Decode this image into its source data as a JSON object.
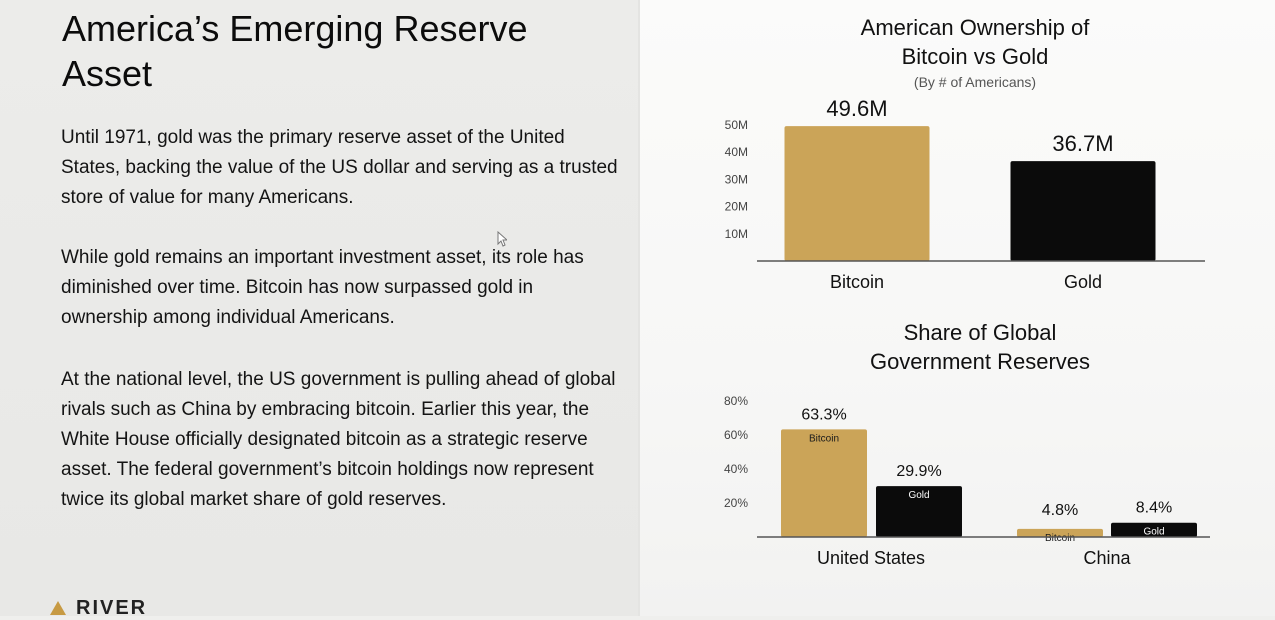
{
  "slide": {
    "headline": "America’s Emerging Reserve Asset",
    "paragraphs": [
      "Until 1971, gold was the primary reserve asset of the United States, backing the value of the US dollar and serving as a trusted store of value for many Americans.",
      "While gold remains an important investment asset, its role has diminished over time. Bitcoin has now surpassed gold in ownership among individual Americans.",
      "At the national level, the US government is pulling ahead of global rivals such as China by embracing bitcoin. Earlier this year, the White House officially designated bitcoin as a strategic reserve asset. The federal government’s bitcoin holdings now represent twice its global market share of gold reserves."
    ],
    "logo_text": "RIVER"
  },
  "colors": {
    "bitcoin": "#cba458",
    "gold": "#0b0b0b"
  },
  "chart_data": [
    {
      "type": "bar",
      "title_lines": [
        "American Ownership of",
        "Bitcoin vs Gold"
      ],
      "subtitle": "(By # of Americans)",
      "categories": [
        "Bitcoin",
        "Gold"
      ],
      "values": [
        49.6,
        36.7
      ],
      "value_labels": [
        "49.6M",
        "36.7M"
      ],
      "yticks": [
        10,
        20,
        30,
        40,
        50
      ],
      "ytick_labels": [
        "10M",
        "20M",
        "30M",
        "40M",
        "50M"
      ],
      "ylim": [
        0,
        50
      ],
      "grid": false
    },
    {
      "type": "bar",
      "title_lines": [
        "Share of Global",
        "Government Reserves"
      ],
      "categories": [
        "United States",
        "China"
      ],
      "series": [
        {
          "name": "Bitcoin",
          "values": [
            63.3,
            4.8
          ],
          "value_labels": [
            "63.3%",
            "4.8%"
          ]
        },
        {
          "name": "Gold",
          "values": [
            29.9,
            8.4
          ],
          "value_labels": [
            "29.9%",
            "8.4%"
          ]
        }
      ],
      "yticks": [
        20,
        40,
        60,
        80
      ],
      "ytick_labels": [
        "20%",
        "40%",
        "60%",
        "80%"
      ],
      "ylim": [
        0,
        80
      ],
      "grid": false
    }
  ]
}
